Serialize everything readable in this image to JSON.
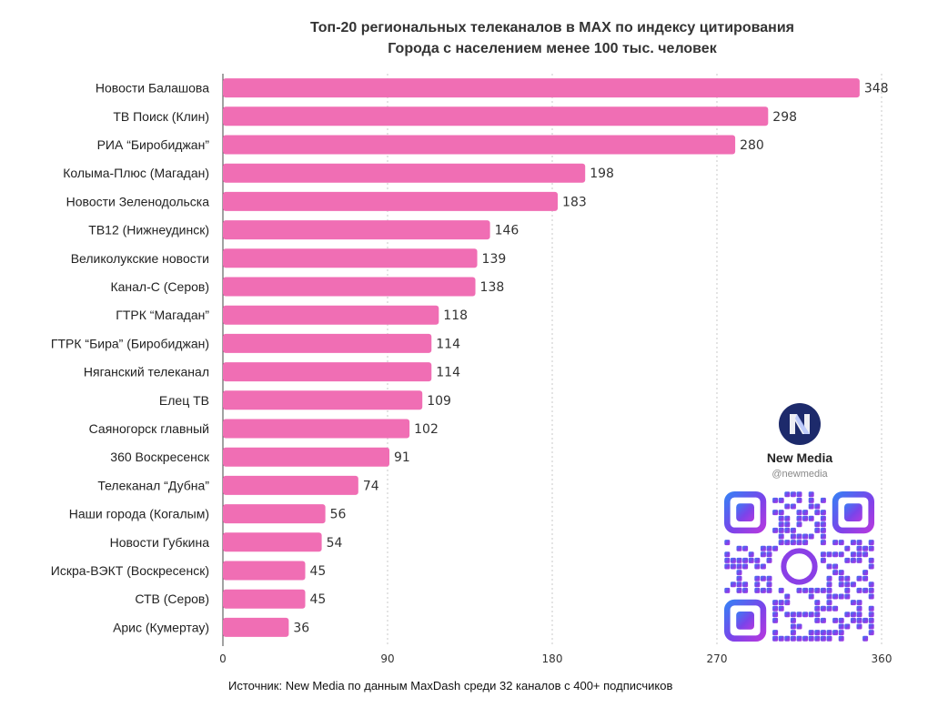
{
  "chart_data": {
    "type": "bar",
    "orientation": "horizontal",
    "title": "Топ-20 региональных телеканалов в MAX по индексу цитирования",
    "subtitle": "Города с населением менее 100 тыс. человек",
    "categories": [
      "Новости Балашова",
      "ТВ Поиск (Клин)",
      "РИА “Биробиджан”",
      "Колыма-Плюс (Магадан)",
      "Новости Зеленодольска",
      "ТВ12 (Нижнеудинск)",
      "Великолукские новости",
      "Канал-С (Серов)",
      "ГТРК “Магадан”",
      "ГТРК “Бира” (Биробиджан)",
      "Няганский телеканал",
      "Елец ТВ",
      "Саяногорск главный",
      "360 Воскресенск",
      "Телеканал “Дубна”",
      "Наши города (Когалым)",
      "Новости Губкина",
      "Искра-ВЭКТ (Воскресенск)",
      "СТВ (Серов)",
      "Арис (Кумертау)"
    ],
    "values": [
      348,
      298,
      280,
      198,
      183,
      146,
      139,
      138,
      118,
      114,
      114,
      109,
      102,
      91,
      74,
      56,
      54,
      45,
      45,
      36
    ],
    "xlim": [
      0,
      360
    ],
    "xticks": [
      0,
      90,
      180,
      270,
      360
    ],
    "grid": "vertical dashed",
    "bar_color": "#f06eb4",
    "xlabel": "",
    "ylabel": ""
  },
  "source": "Источник: New Media по данным MaxDash среди 32 каналов с 400+ подписчиков",
  "brand": {
    "name": "New Media",
    "handle": "@newmedia",
    "logo_text": "New Media",
    "logo_color": "#1d2a6b"
  },
  "qr_colors": [
    "#3b7cf4",
    "#8a3fe6",
    "#b23adf"
  ]
}
